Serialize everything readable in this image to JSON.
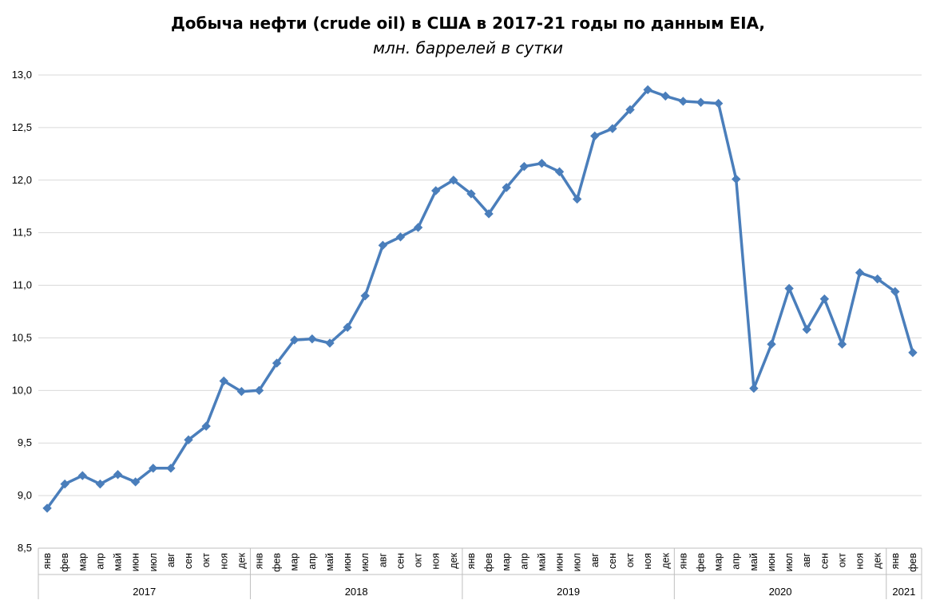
{
  "chart_data": {
    "type": "line",
    "title": "Добыча нефти (crude oil) в США в 2017-21 годы по данным EIA,",
    "subtitle": "млн. баррелей в сутки",
    "ylim": [
      8.5,
      13.0
    ],
    "yticks": [
      "8,5",
      "9,0",
      "9,5",
      "10,0",
      "10,5",
      "11,0",
      "11,5",
      "12,0",
      "12,5",
      "13,0"
    ],
    "grid": true,
    "color": "#4A7EBB",
    "years": [
      {
        "label": "2017",
        "months": [
          "янв",
          "фев",
          "мар",
          "апр",
          "май",
          "июн",
          "июл",
          "авг",
          "сен",
          "окт",
          "ноя",
          "дек"
        ]
      },
      {
        "label": "2018",
        "months": [
          "янв",
          "фев",
          "мар",
          "апр",
          "май",
          "июн",
          "июл",
          "авг",
          "сен",
          "окт",
          "ноя",
          "дек"
        ]
      },
      {
        "label": "2019",
        "months": [
          "янв",
          "фев",
          "мар",
          "апр",
          "май",
          "июн",
          "июл",
          "авг",
          "сен",
          "окт",
          "ноя",
          "дек"
        ]
      },
      {
        "label": "2020",
        "months": [
          "янв",
          "фев",
          "мар",
          "апр",
          "май",
          "июн",
          "июл",
          "авг",
          "сен",
          "окт",
          "ноя",
          "дек"
        ]
      },
      {
        "label": "2021",
        "months": [
          "янв",
          "фев"
        ]
      }
    ],
    "values": [
      8.88,
      9.11,
      9.19,
      9.11,
      9.2,
      9.13,
      9.26,
      9.26,
      9.53,
      9.66,
      10.09,
      9.99,
      10.0,
      10.26,
      10.48,
      10.49,
      10.45,
      10.6,
      10.9,
      11.38,
      11.46,
      11.55,
      11.9,
      12.0,
      11.87,
      11.68,
      11.93,
      12.13,
      12.16,
      12.08,
      11.82,
      12.42,
      12.49,
      12.67,
      12.86,
      12.8,
      12.75,
      12.74,
      12.73,
      12.01,
      10.02,
      10.44,
      10.97,
      10.58,
      10.87,
      10.44,
      11.12,
      11.06,
      10.94,
      10.36
    ]
  }
}
